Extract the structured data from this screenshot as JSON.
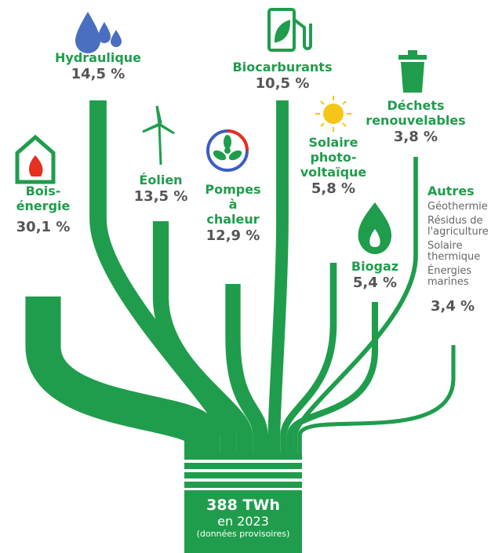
{
  "chart_data": {
    "type": "flow",
    "color": "#1f9d4c",
    "categories": [
      "Bois-\nénergie",
      "Hydraulique",
      "Éolien",
      "Pompes\nà\nchaleur",
      "Biocarburants",
      "Solaire\nphoto-\nvoltaïque",
      "Biogaz",
      "Déchets\nrenouvelables",
      "Autres"
    ],
    "values": [
      30.1,
      14.5,
      13.5,
      12.9,
      10.5,
      5.8,
      5.4,
      3.8,
      3.4
    ],
    "value_labels": [
      "30,1 %",
      "14,5 %",
      "13,5 %",
      "12,9 %",
      "10,5 %",
      "5,8 %",
      "5,4 %",
      "3,8 %",
      "3,4 %"
    ],
    "others_items": [
      "Géothermie",
      "Résidus de\nl'agriculture",
      "Solaire\nthermique",
      "Énergies\nmarines"
    ],
    "total": {
      "value": "388 TWh",
      "year": "en 2023",
      "note": "(données provisoires)"
    }
  }
}
